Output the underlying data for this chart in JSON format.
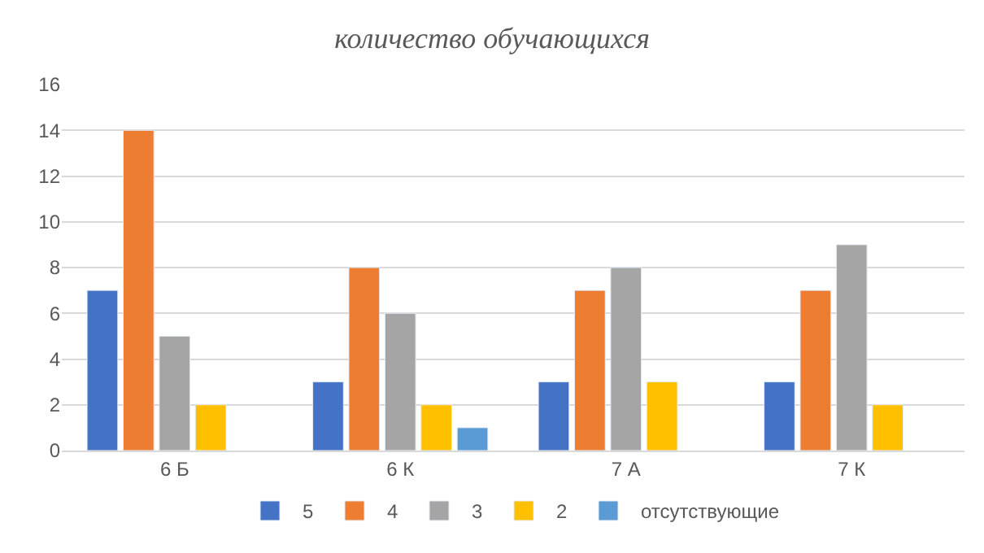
{
  "chart_data": {
    "type": "bar",
    "title": "количество обучающихся",
    "categories": [
      "6 Б",
      "6 К",
      "7 А",
      "7 К"
    ],
    "series": [
      {
        "name": "5",
        "color": "#4472c4",
        "values": [
          7,
          3,
          3,
          3
        ]
      },
      {
        "name": "4",
        "color": "#ed7d31",
        "values": [
          14,
          8,
          7,
          7
        ]
      },
      {
        "name": "3",
        "color": "#a5a5a5",
        "values": [
          5,
          6,
          8,
          9
        ]
      },
      {
        "name": "2",
        "color": "#ffc000",
        "values": [
          2,
          2,
          3,
          2
        ]
      },
      {
        "name": "отсутствующие",
        "color": "#5b9bd5",
        "values": [
          null,
          1,
          null,
          null
        ]
      }
    ],
    "ylim": [
      0,
      16
    ],
    "yticks": [
      0,
      2,
      4,
      6,
      8,
      10,
      12,
      14,
      16
    ],
    "grid": "y",
    "legend": "bottom"
  }
}
